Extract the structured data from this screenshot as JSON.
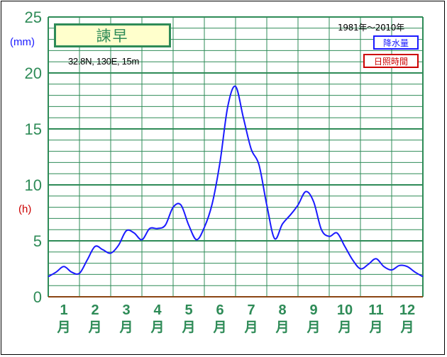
{
  "station": {
    "name": "諫早",
    "coords": "32.8N,  130E,  15m",
    "period": "1981年〜2010年"
  },
  "legend": {
    "precipitation": "降水量",
    "sunshine": "日照時間"
  },
  "units": {
    "precip": "(mm)",
    "sunshine": "(h)"
  },
  "colors": {
    "precip_line": "#1a1aff",
    "sunshine": "#cc0000",
    "grid": "#2e8b57",
    "station_bg": "#ffffcc"
  },
  "chart_data": {
    "type": "line",
    "ylim": [
      0,
      25
    ],
    "y_ticks": [
      "0",
      "5",
      "10",
      "15",
      "20",
      "25"
    ],
    "x_range": [
      0.5,
      12.5
    ],
    "month_labels": [
      "1",
      "2",
      "3",
      "4",
      "5",
      "6",
      "7",
      "8",
      "9",
      "10",
      "11",
      "12"
    ],
    "month_suffix": "月",
    "grid": true,
    "series": [
      {
        "name": "降水量",
        "x": [
          0.5,
          0.75,
          1.0,
          1.25,
          1.5,
          1.75,
          2.0,
          2.25,
          2.5,
          2.75,
          3.0,
          3.25,
          3.5,
          3.75,
          4.0,
          4.25,
          4.5,
          4.75,
          5.0,
          5.25,
          5.5,
          5.75,
          6.0,
          6.25,
          6.5,
          6.75,
          7.0,
          7.25,
          7.5,
          7.75,
          8.0,
          8.25,
          8.5,
          8.75,
          9.0,
          9.25,
          9.5,
          9.75,
          10.0,
          10.25,
          10.5,
          10.75,
          11.0,
          11.25,
          11.5,
          11.75,
          12.0,
          12.25,
          12.5
        ],
        "values": [
          1.8,
          2.2,
          2.7,
          2.2,
          2.1,
          3.3,
          4.5,
          4.2,
          3.9,
          4.6,
          5.9,
          5.7,
          5.1,
          6.1,
          6.1,
          6.4,
          8.0,
          8.2,
          6.4,
          5.1,
          6.2,
          8.3,
          12.0,
          17.0,
          18.8,
          16.0,
          13.2,
          11.8,
          8.2,
          5.2,
          6.5,
          7.3,
          8.2,
          9.4,
          8.5,
          6.0,
          5.4,
          5.7,
          4.5,
          3.3,
          2.5,
          2.9,
          3.4,
          2.7,
          2.4,
          2.8,
          2.7,
          2.2,
          1.8
        ]
      }
    ]
  }
}
